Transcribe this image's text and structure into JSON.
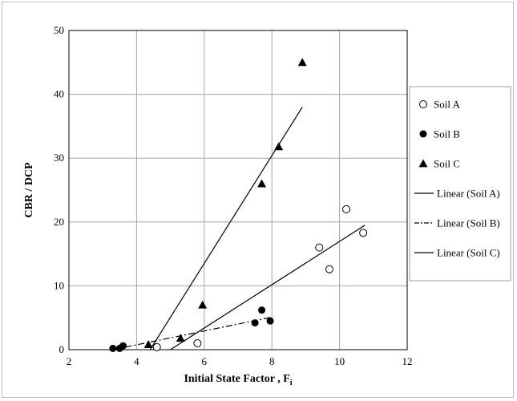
{
  "chart_data": {
    "type": "scatter",
    "xlabel": "Initial State Factor , F",
    "xlabel_sub": "i",
    "ylabel": "CBR / DCP",
    "xlim": [
      2,
      12
    ],
    "ylim": [
      0,
      50
    ],
    "xticks": [
      2,
      4,
      6,
      8,
      10,
      12
    ],
    "yticks": [
      0,
      10,
      20,
      30,
      40,
      50
    ],
    "grid": true,
    "legend_position": "right",
    "series": [
      {
        "name": "Soil A",
        "marker": "circle-open",
        "points": [
          [
            4.6,
            0.4
          ],
          [
            5.8,
            1.0
          ],
          [
            9.4,
            16.0
          ],
          [
            9.7,
            12.6
          ],
          [
            10.2,
            22.0
          ],
          [
            10.7,
            18.3
          ]
        ]
      },
      {
        "name": "Soil B",
        "marker": "circle-filled",
        "points": [
          [
            3.3,
            0.2
          ],
          [
            3.5,
            0.2
          ],
          [
            3.6,
            0.6
          ],
          [
            7.5,
            4.2
          ],
          [
            7.7,
            6.2
          ],
          [
            7.95,
            4.5
          ]
        ]
      },
      {
        "name": "Soil C",
        "marker": "triangle-filled",
        "points": [
          [
            4.35,
            0.8
          ],
          [
            5.3,
            1.8
          ],
          [
            5.95,
            7.0
          ],
          [
            7.7,
            26.0
          ],
          [
            8.2,
            31.8
          ],
          [
            8.9,
            45.0
          ]
        ]
      }
    ],
    "trendlines": [
      {
        "name": "Linear (Soil A)",
        "style": "solid",
        "from": [
          5.0,
          0.0
        ],
        "to": [
          10.75,
          19.5
        ]
      },
      {
        "name": "Linear (Soil B)",
        "style": "dashdot",
        "from": [
          3.3,
          0.0
        ],
        "to": [
          8.0,
          5.1
        ]
      },
      {
        "name": "Linear (Soil C)",
        "style": "solid",
        "from": [
          4.4,
          0.0
        ],
        "to": [
          8.9,
          38.0
        ]
      }
    ]
  }
}
